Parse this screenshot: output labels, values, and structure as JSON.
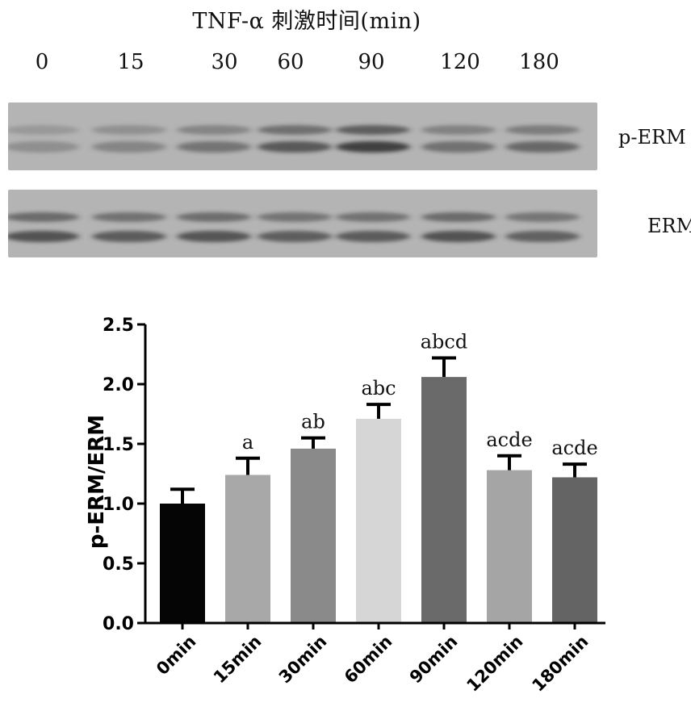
{
  "western_blot": {
    "title": "TNF-α 刺激时间(min)",
    "lanes": [
      "0",
      "15",
      "30",
      "60",
      "90",
      "120",
      "180"
    ],
    "rows": [
      {
        "label": "p-ERM",
        "intensity": [
          0.3,
          0.38,
          0.52,
          0.75,
          0.95,
          0.55,
          0.62
        ]
      },
      {
        "label": "ERM",
        "intensity": [
          0.8,
          0.72,
          0.78,
          0.7,
          0.72,
          0.8,
          0.68
        ]
      }
    ],
    "colors": {
      "membrane": "#b4b4b4",
      "band": "#3a3a3a"
    }
  },
  "chart_data": {
    "type": "bar",
    "categories": [
      "0min",
      "15min",
      "30min",
      "60min",
      "90min",
      "120min",
      "180min"
    ],
    "values": [
      1.0,
      1.24,
      1.46,
      1.71,
      2.06,
      1.28,
      1.22
    ],
    "errors": [
      0.12,
      0.14,
      0.09,
      0.12,
      0.16,
      0.12,
      0.11
    ],
    "annotations": [
      "",
      "a",
      "ab",
      "abc",
      "abcd",
      "acde",
      "acde"
    ],
    "bar_colors": [
      "#050505",
      "#a8a8a8",
      "#8a8a8a",
      "#d6d6d6",
      "#6a6a6a",
      "#a5a5a5",
      "#646464"
    ],
    "ylabel": "p-ERM/ERM",
    "ylim": [
      0,
      2.5
    ],
    "yticks": [
      "0.0",
      "0.5",
      "1.0",
      "1.5",
      "2.0",
      "2.5"
    ],
    "grid": false
  }
}
